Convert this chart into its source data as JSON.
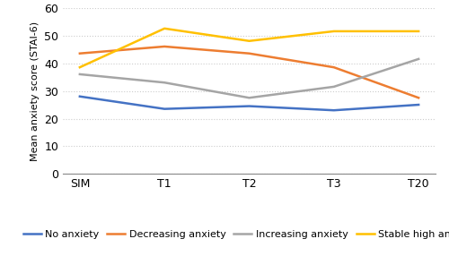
{
  "x_labels": [
    "SIM",
    "T1",
    "T2",
    "T3",
    "T20"
  ],
  "series": [
    {
      "name": "No anxiety",
      "values": [
        28,
        23.5,
        24.5,
        23,
        25
      ],
      "color": "#4472C4",
      "linestyle": "-"
    },
    {
      "name": "Decreasing anxiety",
      "values": [
        43.5,
        46,
        43.5,
        38.5,
        27.5
      ],
      "color": "#ED7D31",
      "linestyle": "-"
    },
    {
      "name": "Increasing anxiety",
      "values": [
        36,
        33,
        27.5,
        31.5,
        41.5
      ],
      "color": "#A5A5A5",
      "linestyle": "-"
    },
    {
      "name": "Stable high anxiety",
      "values": [
        38.5,
        52.5,
        48,
        51.5,
        51.5
      ],
      "color": "#FFC000",
      "linestyle": "-"
    }
  ],
  "ylabel": "Mean anxiety score (STAI-6)",
  "ylim": [
    0,
    60
  ],
  "yticks": [
    0,
    10,
    20,
    30,
    40,
    50,
    60
  ],
  "grid_color": "#cccccc",
  "line_width": 1.8,
  "tick_fontsize": 9,
  "ylabel_fontsize": 8,
  "legend_fontsize": 8
}
